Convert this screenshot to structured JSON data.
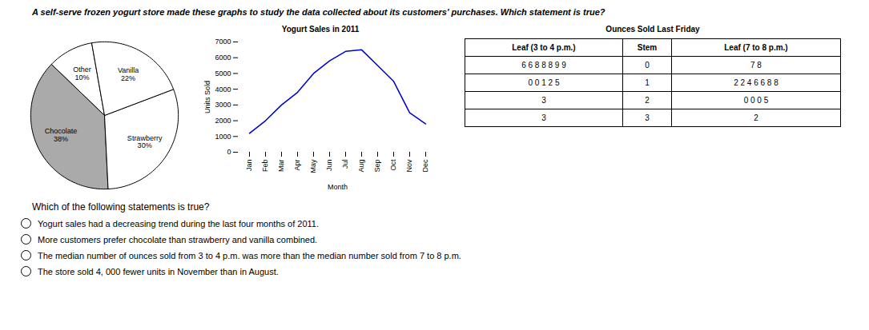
{
  "title": "A self-serve frozen yogurt store made these graphs to study the data collected about its customers' purchases. Which statement is true?",
  "chart_data": [
    {
      "type": "pie",
      "categories": [
        "Other",
        "Chocolate",
        "Strawberry",
        "Vanilla"
      ],
      "values": [
        10,
        38,
        30,
        22
      ],
      "value_labels": [
        "10%",
        "38%",
        "30%",
        "22%"
      ],
      "colors": [
        "#ffffff",
        "#aaaaaa",
        "#ffffff",
        "#ffffff"
      ],
      "data_labels": true
    },
    {
      "type": "line",
      "title": "Yogurt Sales in 2011",
      "categories": [
        "Jan",
        "Feb",
        "Mar",
        "Apr",
        "May",
        "Jun",
        "Jul",
        "Aug",
        "Sep",
        "Oct",
        "Nov",
        "Dec"
      ],
      "values": [
        1200,
        2000,
        3000,
        3800,
        5000,
        5800,
        6400,
        6500,
        5500,
        4500,
        2500,
        1800
      ],
      "color": "#0000cc",
      "xlabel": "Month",
      "ylabel": "Units Sold",
      "ylim": [
        0,
        7000
      ],
      "yticks": [
        0,
        1000,
        2000,
        3000,
        4000,
        5000,
        6000,
        7000
      ],
      "grid": false
    },
    {
      "type": "table",
      "title": "Ounces Sold Last Friday",
      "columns": [
        "Leaf (3 to 4 p.m.)",
        "Stem",
        "Leaf (7 to 8 p.m.)"
      ],
      "rows": [
        [
          "6 6 8 8 8 9 9",
          "0",
          "7 8"
        ],
        [
          "0 0 1 2 5",
          "1",
          "2 2 4 6 6 8 8"
        ],
        [
          "3",
          "2",
          "0 0 0 5"
        ],
        [
          "3",
          "3",
          "2"
        ]
      ]
    }
  ],
  "question": "Which of the following statements is true?",
  "options": [
    "Yogurt sales had a decreasing trend during the last four months of 2011.",
    "More customers prefer chocolate than strawberry and vanilla combined.",
    "The median number of ounces sold from 3 to 4 p.m. was more than the median number sold from 7 to 8 p.m.",
    "The store sold 4, 000 fewer units in November than in August."
  ]
}
